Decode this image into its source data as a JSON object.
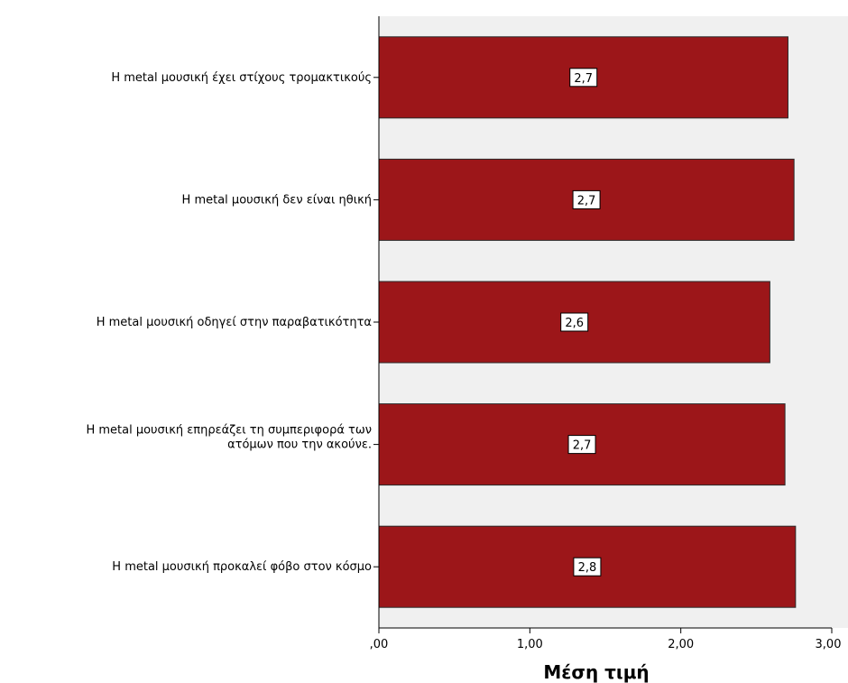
{
  "chart_data": {
    "type": "bar",
    "orientation": "horizontal",
    "categories": [
      [
        "Η metal μουσική έχει στίχους τρομακτικούς"
      ],
      [
        "Η metal μουσική δεν είναι ηθική"
      ],
      [
        "Η metal μουσική οδηγεί στην παραβατικότητα"
      ],
      [
        "Η metal μουσική επηρεάζει τη συμπεριφορά των",
        "ατόμων που την ακούνε."
      ],
      [
        "Η metal μουσική προκαλεί φόβο στον κόσμο"
      ]
    ],
    "values": [
      2.71,
      2.75,
      2.59,
      2.69,
      2.76
    ],
    "data_labels": [
      "2,7",
      "2,7",
      "2,6",
      "2,7",
      "2,8"
    ],
    "xlabel": "Μέση τιμή",
    "xlim": [
      0,
      3
    ],
    "x_ticks": [
      ",00",
      "1,00",
      "2,00",
      "3,00"
    ],
    "colors": {
      "bar": "#9c1619",
      "plot_background": "#f0f0f0",
      "bar_edge": "#2a2a2a"
    },
    "grid": false,
    "legend": "none"
  }
}
